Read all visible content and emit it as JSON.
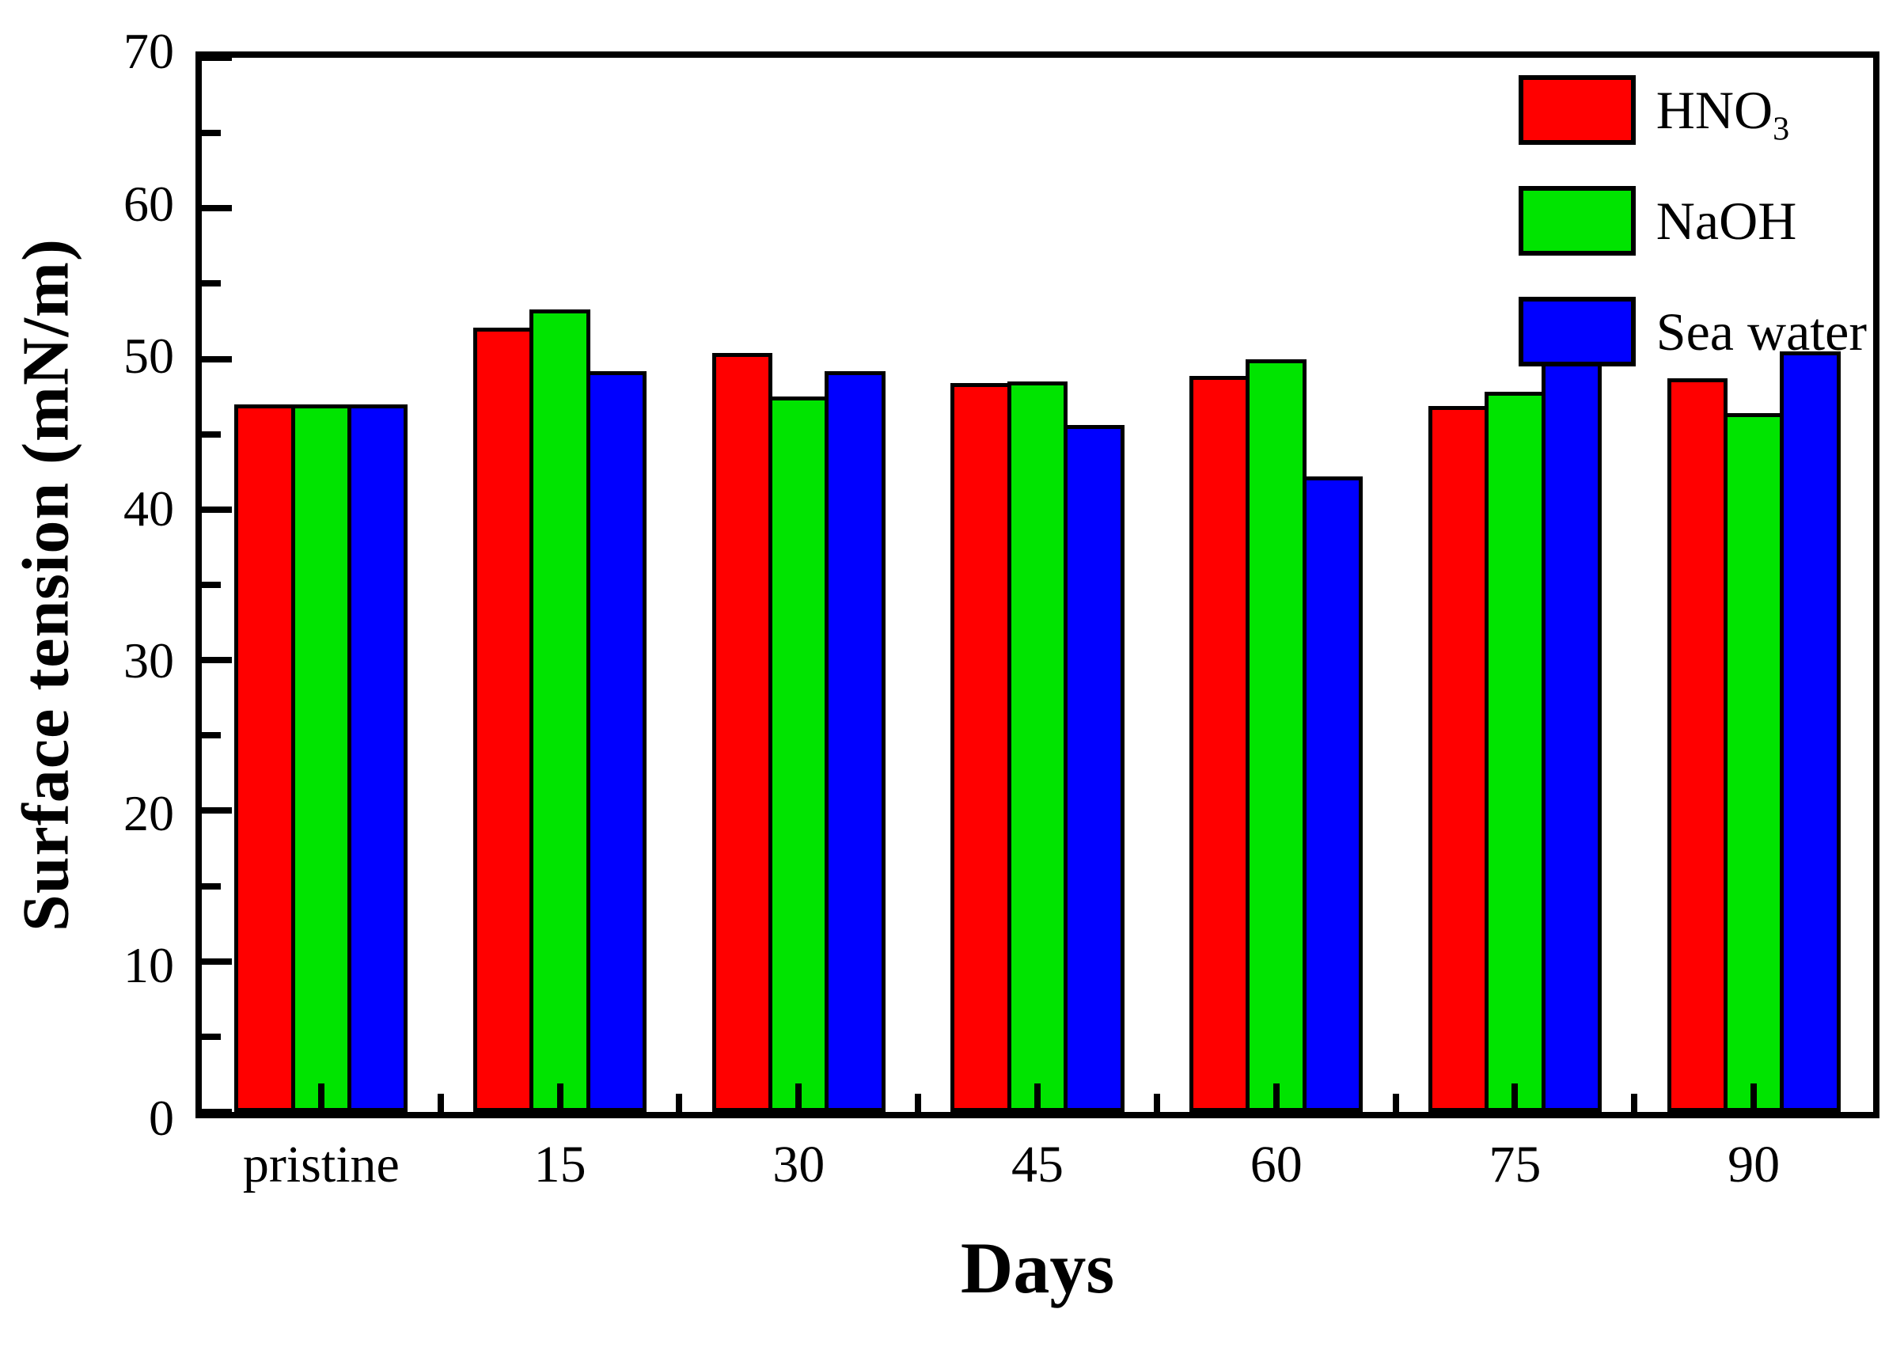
{
  "chart_data": {
    "type": "bar",
    "title": "",
    "xlabel": "Days",
    "ylabel": "Surface tension (mN/m)",
    "ylim": [
      0,
      70
    ],
    "y_major_ticks": [
      0,
      10,
      20,
      30,
      40,
      50,
      60,
      70
    ],
    "y_minor_ticks": [
      5,
      15,
      25,
      35,
      45,
      55,
      65
    ],
    "grid": false,
    "legend_position": "top-right-inside",
    "categories": [
      "pristine",
      "15",
      "30",
      "45",
      "60",
      "75",
      "90"
    ],
    "series": [
      {
        "name": "HNO3",
        "label_base": "HNO",
        "label_sub": "3",
        "color": "#ff0000",
        "values": [
          47.0,
          52.1,
          50.4,
          48.4,
          48.9,
          46.9,
          48.7
        ]
      },
      {
        "name": "NaOH",
        "label_base": "NaOH",
        "label_sub": "",
        "color": "#00e400",
        "values": [
          47.0,
          53.3,
          47.5,
          48.5,
          50.0,
          47.8,
          46.4
        ]
      },
      {
        "name": "Sea water",
        "label_base": "Sea water",
        "label_sub": "",
        "color": "#0000ff",
        "values": [
          47.0,
          49.2,
          49.2,
          45.6,
          42.2,
          50.4,
          50.5
        ]
      }
    ],
    "bar_outline_color": "#000000",
    "axis_color": "#000000",
    "group_fill_ratio": 0.76
  }
}
